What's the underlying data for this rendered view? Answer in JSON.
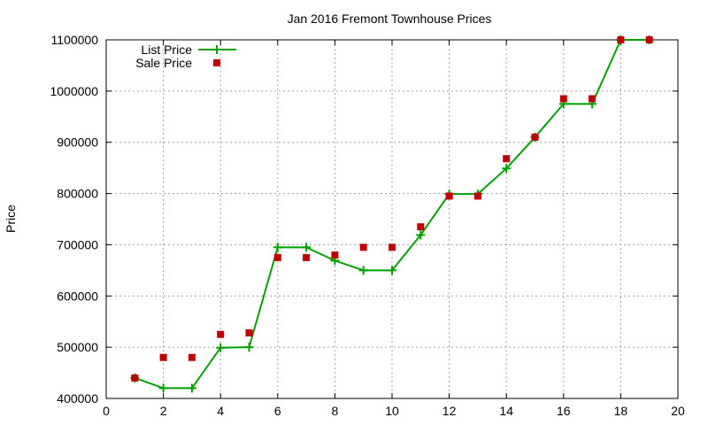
{
  "chart_data": {
    "type": "line",
    "title": "Jan 2016 Fremont Townhouse Prices",
    "xlabel": "",
    "ylabel": "Price",
    "xlim": [
      0,
      20
    ],
    "ylim": [
      400000,
      1100000
    ],
    "xticks": [
      0,
      2,
      4,
      6,
      8,
      10,
      12,
      14,
      16,
      18,
      20
    ],
    "yticks": [
      400000,
      500000,
      600000,
      700000,
      800000,
      900000,
      1000000,
      1100000
    ],
    "grid": true,
    "legend_position": "top-left",
    "series": [
      {
        "name": "List Price",
        "style": "line-with-plus-markers",
        "color": "#00a000",
        "x": [
          1,
          2,
          3,
          4,
          5,
          6,
          7,
          8,
          9,
          10,
          11,
          12,
          13,
          14,
          15,
          16,
          17,
          18,
          19
        ],
        "y": [
          440000,
          420000,
          420000,
          499000,
          500000,
          695000,
          695000,
          669000,
          650000,
          650000,
          719000,
          799000,
          799000,
          849000,
          910000,
          975000,
          975000,
          1100000,
          1100000
        ]
      },
      {
        "name": "Sale Price",
        "style": "square-markers",
        "color": "#c00000",
        "x": [
          1,
          2,
          3,
          4,
          5,
          6,
          7,
          8,
          9,
          10,
          11,
          12,
          13,
          14,
          15,
          16,
          17,
          18,
          19
        ],
        "y": [
          440000,
          480000,
          480000,
          525000,
          528000,
          675000,
          675000,
          680000,
          695000,
          695000,
          735000,
          795000,
          795000,
          868000,
          910000,
          985000,
          985000,
          1100000,
          1100000
        ]
      }
    ]
  }
}
